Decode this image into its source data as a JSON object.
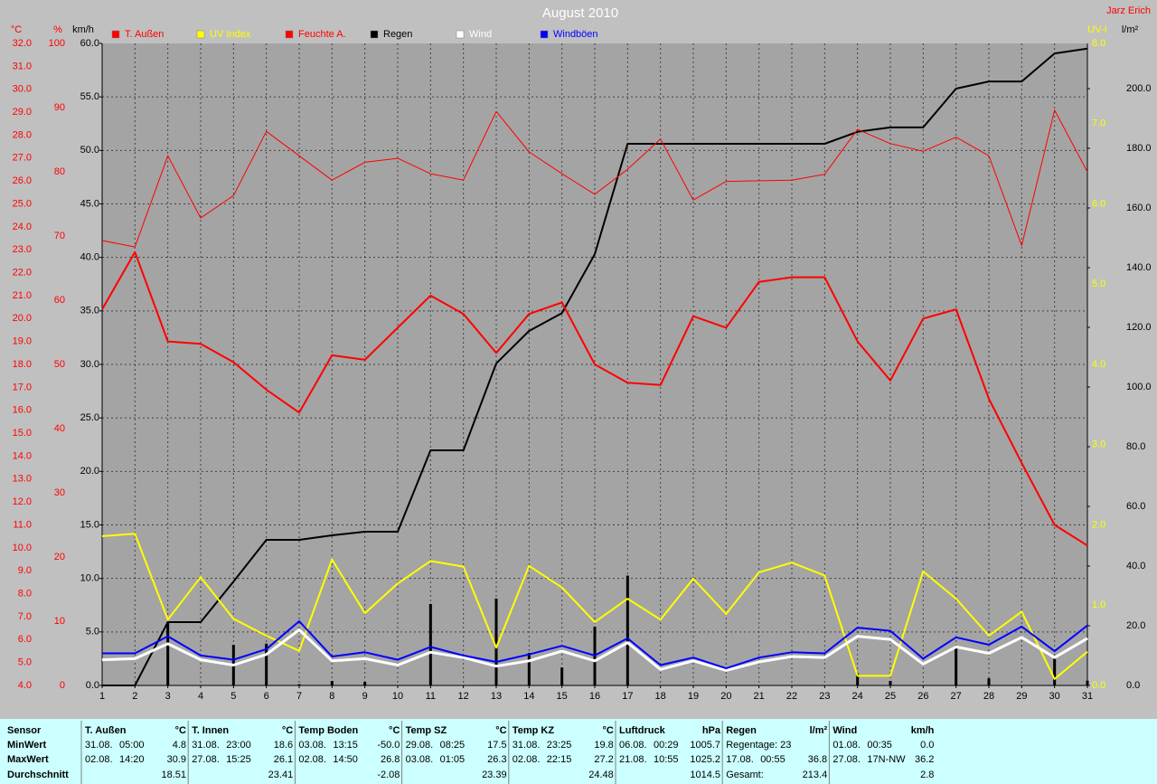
{
  "chart_data": {
    "type": "line",
    "title": "August 2010",
    "author": "Jarz Erich",
    "x": [
      1,
      2,
      3,
      4,
      5,
      6,
      7,
      8,
      9,
      10,
      11,
      12,
      13,
      14,
      15,
      16,
      17,
      18,
      19,
      20,
      21,
      22,
      23,
      24,
      25,
      26,
      27,
      28,
      29,
      30,
      31
    ],
    "xlim": [
      1,
      31
    ],
    "grid": true,
    "yaxes": [
      {
        "label": "°C",
        "color": "#ff0000",
        "ylim": [
          4,
          32
        ],
        "yticks": [
          {
            "value": 4,
            "label": "4.0"
          },
          {
            "value": 5,
            "label": "5.0"
          },
          {
            "value": 6,
            "label": "6.0"
          },
          {
            "value": 7,
            "label": "7.0"
          },
          {
            "value": 8,
            "label": "8.0"
          },
          {
            "value": 9,
            "label": "9.0"
          },
          {
            "value": 10,
            "label": "10.0"
          },
          {
            "value": 11,
            "label": "11.0"
          },
          {
            "value": 12,
            "label": "12.0"
          },
          {
            "value": 13,
            "label": "13.0"
          },
          {
            "value": 14,
            "label": "14.0"
          },
          {
            "value": 15,
            "label": "15.0"
          },
          {
            "value": 16,
            "label": "16.0"
          },
          {
            "value": 17,
            "label": "17.0"
          },
          {
            "value": 18,
            "label": "18.0"
          },
          {
            "value": 19,
            "label": "19.0"
          },
          {
            "value": 20,
            "label": "20.0"
          },
          {
            "value": 21,
            "label": "21.0"
          },
          {
            "value": 22,
            "label": "22.0"
          },
          {
            "value": 23,
            "label": "23.0"
          },
          {
            "value": 24,
            "label": "24.0"
          },
          {
            "value": 25,
            "label": "25.0"
          },
          {
            "value": 26,
            "label": "26.0"
          },
          {
            "value": 27,
            "label": "27.0"
          },
          {
            "value": 28,
            "label": "28.0"
          },
          {
            "value": 29,
            "label": "29.0"
          },
          {
            "value": 30,
            "label": "30.0"
          },
          {
            "value": 31,
            "label": "31.0"
          },
          {
            "value": 32,
            "label": "32.0"
          }
        ]
      },
      {
        "label": "%",
        "color": "#ff0000",
        "ylim": [
          0,
          100
        ],
        "yticks": [
          0,
          10,
          20,
          30,
          40,
          50,
          60,
          70,
          80,
          90,
          100
        ]
      },
      {
        "label": "km/h",
        "color": "#000000",
        "ylim": [
          0,
          60
        ],
        "grid": true,
        "yticks": [
          {
            "value": 0,
            "label": "0.0"
          },
          {
            "value": 5,
            "label": "5.0"
          },
          {
            "value": 10,
            "label": "10.0"
          },
          {
            "value": 15,
            "label": "15.0"
          },
          {
            "value": 20,
            "label": "20.0"
          },
          {
            "value": 25,
            "label": "25.0"
          },
          {
            "value": 30,
            "label": "30.0"
          },
          {
            "value": 35,
            "label": "35.0"
          },
          {
            "value": 40,
            "label": "40.0"
          },
          {
            "value": 45,
            "label": "45.0"
          },
          {
            "value": 50,
            "label": "50.0"
          },
          {
            "value": 55,
            "label": "55.0"
          },
          {
            "value": 60,
            "label": "60.0"
          }
        ]
      },
      {
        "label": "UV-I",
        "color": "#ffff00",
        "ylim": [
          0,
          8
        ],
        "yticks": [
          {
            "value": 0,
            "label": "0.0"
          },
          {
            "value": 1,
            "label": "1.0"
          },
          {
            "value": 2,
            "label": "2.0"
          },
          {
            "value": 3,
            "label": "3.0"
          },
          {
            "value": 4,
            "label": "4.0"
          },
          {
            "value": 5,
            "label": "5.0"
          },
          {
            "value": 6,
            "label": "6.0"
          },
          {
            "value": 7,
            "label": "7.0"
          },
          {
            "value": 8,
            "label": "8.0"
          }
        ]
      },
      {
        "label": "l/m²",
        "color": "#000000",
        "ylim": [
          0,
          215.15
        ],
        "yticks": [
          {
            "value": 0,
            "label": "0.0"
          },
          {
            "value": 20,
            "label": "20.0"
          },
          {
            "value": 40,
            "label": "40.0"
          },
          {
            "value": 60,
            "label": "60.0"
          },
          {
            "value": 80,
            "label": "80.0"
          },
          {
            "value": 100,
            "label": "100.0"
          },
          {
            "value": 120,
            "label": "120.0"
          },
          {
            "value": 140,
            "label": "140.0"
          },
          {
            "value": 160,
            "label": "160.0"
          },
          {
            "value": 180,
            "label": "180.0"
          },
          {
            "value": 200,
            "label": "200.0"
          }
        ]
      }
    ],
    "series": [
      {
        "name": "T. Außen",
        "color": "#ff0000",
        "axis": 0,
        "width": 2,
        "values": [
          20.4,
          22.9,
          19.0,
          18.9,
          18.1,
          16.9,
          15.9,
          18.4,
          18.2,
          19.6,
          21.0,
          20.2,
          18.5,
          20.2,
          20.7,
          18.0,
          17.2,
          17.1,
          20.1,
          19.6,
          21.6,
          21.8,
          21.8,
          19.0,
          17.3,
          20.0,
          20.4,
          16.5,
          13.7,
          11.0,
          10.1
        ]
      },
      {
        "name": "UV Index",
        "color": "#ffff00",
        "axis": 3,
        "width": 2,
        "values": [
          1.86,
          1.89,
          0.82,
          1.35,
          0.83,
          0.62,
          0.43,
          1.57,
          0.9,
          1.27,
          1.55,
          1.48,
          0.47,
          1.49,
          1.22,
          0.79,
          1.08,
          0.82,
          1.33,
          0.89,
          1.41,
          1.53,
          1.37,
          0.12,
          0.12,
          1.42,
          1.08,
          0.62,
          0.92,
          0.08,
          0.42
        ]
      },
      {
        "name": "Feuchte A.",
        "color": "#ff0000",
        "axis": 1,
        "width": 1,
        "values": [
          69.3,
          68.3,
          82.5,
          72.8,
          76.3,
          86.3,
          82.5,
          78.7,
          81.5,
          82.1,
          79.7,
          78.7,
          89.4,
          83.1,
          79.7,
          76.5,
          80.4,
          85.1,
          75.6,
          78.5,
          78.6,
          78.7,
          79.6,
          86.6,
          84.4,
          83.2,
          85.4,
          82.5,
          68.5,
          89.6,
          80.0
        ]
      },
      {
        "name": "Regen",
        "color": "#000000",
        "axis": 4,
        "width": 2,
        "values": [
          0,
          0,
          21.2,
          21.2,
          34.8,
          48.8,
          48.8,
          50.3,
          51.5,
          51.5,
          78.8,
          78.8,
          107.9,
          118.8,
          124.8,
          144.5,
          181.5,
          181.5,
          181.5,
          181.5,
          181.5,
          181.5,
          181.5,
          185.5,
          187.0,
          187.0,
          200.0,
          202.4,
          202.4,
          211.8,
          213.4
        ],
        "daily": [
          0,
          0,
          21.2,
          0,
          13.6,
          14.0,
          0.4,
          1.5,
          1.2,
          0,
          27.3,
          0,
          29.1,
          10.9,
          6.0,
          19.7,
          36.8,
          0,
          0,
          0,
          0,
          0,
          0,
          4.0,
          1.5,
          0,
          13.0,
          2.4,
          0,
          9.4,
          1.6
        ]
      },
      {
        "name": "Wind",
        "color": "#ffffff",
        "axis": 2,
        "width": 3,
        "values": [
          2.4,
          2.5,
          3.9,
          2.4,
          1.9,
          2.9,
          5.2,
          2.3,
          2.5,
          1.9,
          3.1,
          2.6,
          1.8,
          2.3,
          3.2,
          2.3,
          4.0,
          1.5,
          2.3,
          1.4,
          2.2,
          2.7,
          2.6,
          4.6,
          4.3,
          2.0,
          3.6,
          3.0,
          4.5,
          2.6,
          4.4
        ]
      },
      {
        "name": "Windböen",
        "color": "#0000ff",
        "axis": 2,
        "width": 2,
        "values": [
          3.0,
          3.0,
          4.6,
          2.8,
          2.4,
          3.4,
          6.0,
          2.7,
          3.1,
          2.4,
          3.6,
          2.8,
          2.2,
          2.9,
          3.7,
          2.8,
          4.4,
          1.9,
          2.6,
          1.6,
          2.6,
          3.1,
          3.0,
          5.4,
          5.1,
          2.5,
          4.5,
          3.8,
          5.5,
          3.2,
          5.6
        ]
      }
    ]
  },
  "table": {
    "row_labels": [
      "Sensor",
      "MinWert",
      "MaxWert",
      "Durchschnitt"
    ],
    "blocks": [
      {
        "name": "T. Außen",
        "unit": "°C",
        "min": [
          "31.08.",
          "05:00",
          "4.8"
        ],
        "max": [
          "02.08.",
          "14:20",
          "30.9"
        ],
        "avg": [
          "18.51"
        ]
      },
      {
        "name": "T. Innen",
        "unit": "°C",
        "min": [
          "31.08.",
          "23:00",
          "18.6"
        ],
        "max": [
          "27.08.",
          "15:25",
          "26.1"
        ],
        "avg": [
          "23.41"
        ]
      },
      {
        "name": "Temp Boden",
        "unit": "°C",
        "min": [
          "03.08.",
          "13:15",
          "-50.0"
        ],
        "max": [
          "02.08.",
          "14:50",
          "26.8"
        ],
        "avg": [
          "-2.08"
        ]
      },
      {
        "name": "Temp SZ",
        "unit": "°C",
        "min": [
          "29.08.",
          "08:25",
          "17.5"
        ],
        "max": [
          "03.08.",
          "01:05",
          "26.3"
        ],
        "avg": [
          "23.39"
        ]
      },
      {
        "name": "Temp KZ",
        "unit": "°C",
        "min": [
          "31.08.",
          "23:25",
          "19.8"
        ],
        "max": [
          "02.08.",
          "22:15",
          "27.2"
        ],
        "avg": [
          "24.48"
        ]
      },
      {
        "name": "Luftdruck",
        "unit": "hPa",
        "min": [
          "06.08.",
          "00:29",
          "1005.7"
        ],
        "max": [
          "21.08.",
          "10:55",
          "1025.2"
        ],
        "avg": [
          "1014.5"
        ]
      },
      {
        "name": "Regen",
        "unit": "l/m²",
        "min": [
          "Regentage: 23"
        ],
        "max": [
          "17.08.",
          "00:55",
          "36.8"
        ],
        "avg": [
          "Gesamt:",
          "213.4"
        ]
      },
      {
        "name": "Wind",
        "unit": "km/h",
        "min": [
          "01.08.",
          "00:35",
          "0.0"
        ],
        "max": [
          "27.08.",
          "17N-NW",
          "36.2"
        ],
        "avg": [
          "2.8"
        ]
      }
    ]
  }
}
